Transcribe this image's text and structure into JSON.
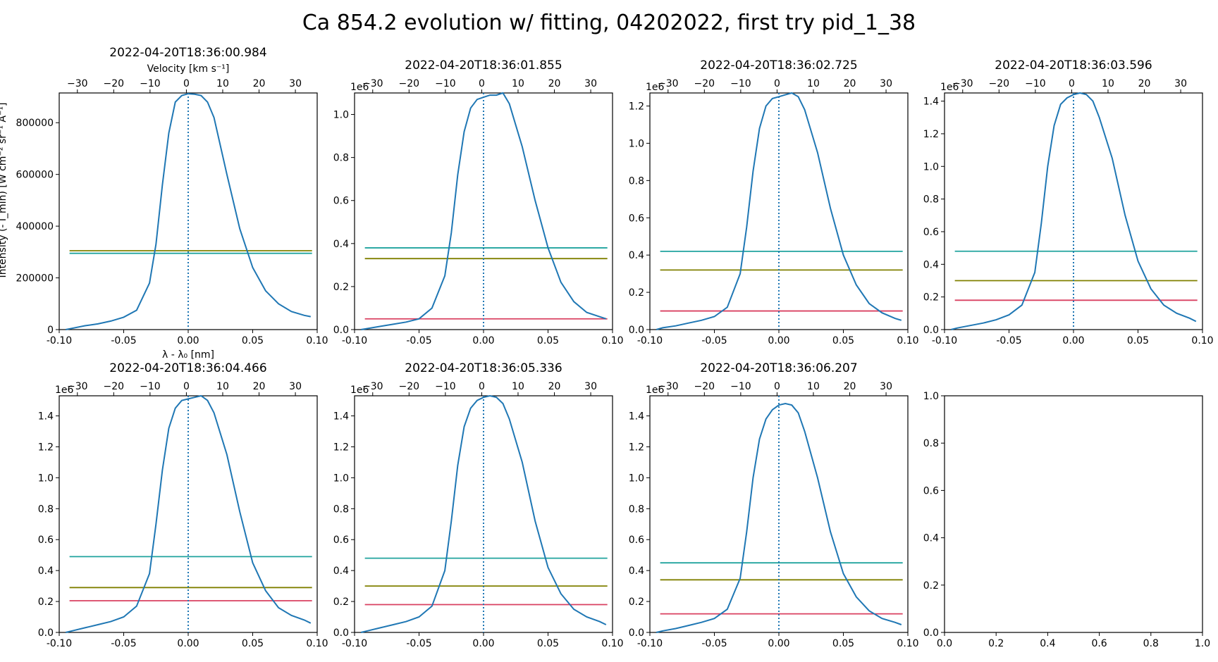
{
  "figure": {
    "title": "Ca 854.2 evolution w/ fitting, 04202022, first try pid_1_38"
  },
  "colors": {
    "profile": "#1f77b4",
    "center_line": "#1f77b4",
    "teal": "#20a39e",
    "olive": "#808000",
    "crimson": "#d94060",
    "axes": "#000000"
  },
  "chart_data": [
    {
      "type": "line",
      "title": "2022-04-20T18:36:00.984",
      "xlabel": "λ - λ₀ [nm]",
      "ylabel": "Intensity (- I_min) [W cm⁻² sr⁻¹ Å⁻¹]",
      "top_xlabel": "Velocity [km s⁻¹]",
      "xlim": [
        -0.1,
        0.1
      ],
      "ylim": [
        0,
        915000
      ],
      "xticks": [
        "-0.10",
        "-0.05",
        "0.00",
        "0.05",
        "0.10"
      ],
      "yticks": [
        {
          "v": 0,
          "label": "0"
        },
        {
          "v": 200000,
          "label": "200000"
        },
        {
          "v": 400000,
          "label": "400000"
        },
        {
          "v": 600000,
          "label": "600000"
        },
        {
          "v": 800000,
          "label": "800000"
        }
      ],
      "y_offset": "",
      "top_xlim": [
        -35,
        36
      ],
      "top_xticks": [
        "−30",
        "−20",
        "−10",
        "0",
        "10",
        "20",
        "30"
      ],
      "series": [
        {
          "x": [
            -0.095,
            -0.09,
            -0.08,
            -0.07,
            -0.06,
            -0.05,
            -0.04,
            -0.03,
            -0.025,
            -0.02,
            -0.015,
            -0.01,
            -0.005,
            0,
            0.005,
            0.01,
            0.015,
            0.02,
            0.03,
            0.04,
            0.05,
            0.06,
            0.07,
            0.08,
            0.09,
            0.095
          ],
          "y": [
            0,
            5000,
            15000,
            22000,
            33000,
            48000,
            75000,
            180000,
            330000,
            560000,
            760000,
            880000,
            905000,
            912000,
            910000,
            905000,
            880000,
            820000,
            600000,
            390000,
            240000,
            150000,
            100000,
            70000,
            55000,
            50000
          ]
        }
      ],
      "levels": [
        {
          "color": "olive",
          "y": 305000
        },
        {
          "color": "teal",
          "y": 295000
        }
      ]
    },
    {
      "type": "line",
      "title": "2022-04-20T18:36:01.855",
      "xlim": [
        -0.1,
        0.1
      ],
      "ylim": [
        0,
        1.1
      ],
      "xticks": [
        "-0.10",
        "-0.05",
        "0.00",
        "0.05",
        "0.10"
      ],
      "yticks": [
        {
          "v": 0,
          "label": "0.0"
        },
        {
          "v": 0.2,
          "label": "0.2"
        },
        {
          "v": 0.4,
          "label": "0.4"
        },
        {
          "v": 0.6,
          "label": "0.6"
        },
        {
          "v": 0.8,
          "label": "0.8"
        },
        {
          "v": 1.0,
          "label": "1.0"
        }
      ],
      "y_offset": "1e6",
      "top_xlim": [
        -35,
        36
      ],
      "top_xticks": [
        "−30",
        "−20",
        "−10",
        "0",
        "10",
        "20",
        "30"
      ],
      "series": [
        {
          "x": [
            -0.095,
            -0.09,
            -0.08,
            -0.07,
            -0.06,
            -0.05,
            -0.04,
            -0.03,
            -0.025,
            -0.02,
            -0.015,
            -0.01,
            -0.005,
            0,
            0.005,
            0.01,
            0.015,
            0.02,
            0.03,
            0.04,
            0.05,
            0.06,
            0.07,
            0.08,
            0.09,
            0.095
          ],
          "y": [
            0,
            0.005,
            0.015,
            0.025,
            0.035,
            0.05,
            0.1,
            0.25,
            0.45,
            0.72,
            0.92,
            1.03,
            1.07,
            1.08,
            1.09,
            1.09,
            1.1,
            1.05,
            0.85,
            0.6,
            0.38,
            0.22,
            0.13,
            0.08,
            0.06,
            0.05
          ]
        }
      ],
      "levels": [
        {
          "color": "teal",
          "y": 0.38
        },
        {
          "color": "olive",
          "y": 0.33
        },
        {
          "color": "crimson",
          "y": 0.05
        }
      ]
    },
    {
      "type": "line",
      "title": "2022-04-20T18:36:02.725",
      "xlim": [
        -0.1,
        0.1
      ],
      "ylim": [
        0,
        1.27
      ],
      "xticks": [
        "-0.10",
        "-0.05",
        "0.00",
        "0.05",
        "0.10"
      ],
      "yticks": [
        {
          "v": 0,
          "label": "0.0"
        },
        {
          "v": 0.2,
          "label": "0.2"
        },
        {
          "v": 0.4,
          "label": "0.4"
        },
        {
          "v": 0.6,
          "label": "0.6"
        },
        {
          "v": 0.8,
          "label": "0.8"
        },
        {
          "v": 1.0,
          "label": "1.0"
        },
        {
          "v": 1.2,
          "label": "1.2"
        }
      ],
      "y_offset": "1e6",
      "top_xlim": [
        -35,
        36
      ],
      "top_xticks": [
        "−30",
        "−20",
        "−10",
        "0",
        "10",
        "20",
        "30"
      ],
      "series": [
        {
          "x": [
            -0.095,
            -0.09,
            -0.08,
            -0.07,
            -0.06,
            -0.05,
            -0.04,
            -0.03,
            -0.025,
            -0.02,
            -0.015,
            -0.01,
            -0.005,
            0,
            0.005,
            0.01,
            0.015,
            0.02,
            0.03,
            0.04,
            0.05,
            0.06,
            0.07,
            0.08,
            0.09,
            0.095
          ],
          "y": [
            0,
            0.01,
            0.02,
            0.035,
            0.05,
            0.07,
            0.12,
            0.3,
            0.55,
            0.85,
            1.08,
            1.2,
            1.24,
            1.25,
            1.26,
            1.27,
            1.25,
            1.18,
            0.95,
            0.65,
            0.4,
            0.24,
            0.14,
            0.09,
            0.06,
            0.05
          ]
        }
      ],
      "levels": [
        {
          "color": "teal",
          "y": 0.42
        },
        {
          "color": "olive",
          "y": 0.32
        },
        {
          "color": "crimson",
          "y": 0.1
        }
      ]
    },
    {
      "type": "line",
      "title": "2022-04-20T18:36:03.596",
      "xlim": [
        -0.1,
        0.1
      ],
      "ylim": [
        0,
        1.45
      ],
      "xticks": [
        "-0.10",
        "-0.05",
        "0.00",
        "0.05",
        "0.10"
      ],
      "yticks": [
        {
          "v": 0,
          "label": "0.0"
        },
        {
          "v": 0.2,
          "label": "0.2"
        },
        {
          "v": 0.4,
          "label": "0.4"
        },
        {
          "v": 0.6,
          "label": "0.6"
        },
        {
          "v": 0.8,
          "label": "0.8"
        },
        {
          "v": 1.0,
          "label": "1.0"
        },
        {
          "v": 1.2,
          "label": "1.2"
        },
        {
          "v": 1.4,
          "label": "1.4"
        }
      ],
      "y_offset": "1e6",
      "top_xlim": [
        -35,
        36
      ],
      "top_xticks": [
        "−30",
        "−20",
        "−10",
        "0",
        "10",
        "20",
        "30"
      ],
      "series": [
        {
          "x": [
            -0.095,
            -0.09,
            -0.08,
            -0.07,
            -0.06,
            -0.05,
            -0.04,
            -0.03,
            -0.025,
            -0.02,
            -0.015,
            -0.01,
            -0.005,
            0,
            0.005,
            0.01,
            0.015,
            0.02,
            0.03,
            0.04,
            0.05,
            0.06,
            0.07,
            0.08,
            0.09,
            0.095
          ],
          "y": [
            0,
            0.01,
            0.025,
            0.04,
            0.06,
            0.09,
            0.15,
            0.35,
            0.65,
            1.0,
            1.25,
            1.38,
            1.42,
            1.44,
            1.45,
            1.44,
            1.4,
            1.3,
            1.05,
            0.7,
            0.42,
            0.25,
            0.15,
            0.1,
            0.07,
            0.05
          ]
        }
      ],
      "levels": [
        {
          "color": "teal",
          "y": 0.48
        },
        {
          "color": "olive",
          "y": 0.3
        },
        {
          "color": "crimson",
          "y": 0.18
        }
      ]
    },
    {
      "type": "line",
      "title": "2022-04-20T18:36:04.466",
      "xlim": [
        -0.1,
        0.1
      ],
      "ylim": [
        0,
        1.53
      ],
      "xticks": [
        "-0.10",
        "-0.05",
        "0.00",
        "0.05",
        "0.10"
      ],
      "yticks": [
        {
          "v": 0,
          "label": "0.0"
        },
        {
          "v": 0.2,
          "label": "0.2"
        },
        {
          "v": 0.4,
          "label": "0.4"
        },
        {
          "v": 0.6,
          "label": "0.6"
        },
        {
          "v": 0.8,
          "label": "0.8"
        },
        {
          "v": 1.0,
          "label": "1.0"
        },
        {
          "v": 1.2,
          "label": "1.2"
        },
        {
          "v": 1.4,
          "label": "1.4"
        }
      ],
      "y_offset": "1e6",
      "top_xlim": [
        -35,
        36
      ],
      "top_xticks": [
        "−30",
        "−20",
        "−10",
        "0",
        "10",
        "20",
        "30"
      ],
      "series": [
        {
          "x": [
            -0.095,
            -0.09,
            -0.08,
            -0.07,
            -0.06,
            -0.05,
            -0.04,
            -0.03,
            -0.025,
            -0.02,
            -0.015,
            -0.01,
            -0.005,
            0,
            0.005,
            0.01,
            0.015,
            0.02,
            0.03,
            0.04,
            0.05,
            0.06,
            0.07,
            0.08,
            0.09,
            0.095
          ],
          "y": [
            0,
            0.01,
            0.03,
            0.05,
            0.07,
            0.1,
            0.17,
            0.38,
            0.7,
            1.05,
            1.32,
            1.45,
            1.5,
            1.51,
            1.52,
            1.53,
            1.5,
            1.42,
            1.15,
            0.78,
            0.45,
            0.27,
            0.16,
            0.11,
            0.08,
            0.06
          ]
        }
      ],
      "levels": [
        {
          "color": "teal",
          "y": 0.49
        },
        {
          "color": "olive",
          "y": 0.29
        },
        {
          "color": "crimson",
          "y": 0.205
        }
      ]
    },
    {
      "type": "line",
      "title": "2022-04-20T18:36:05.336",
      "xlim": [
        -0.1,
        0.1
      ],
      "ylim": [
        0,
        1.53
      ],
      "xticks": [
        "-0.10",
        "-0.05",
        "0.00",
        "0.05",
        "0.10"
      ],
      "yticks": [
        {
          "v": 0,
          "label": "0.0"
        },
        {
          "v": 0.2,
          "label": "0.2"
        },
        {
          "v": 0.4,
          "label": "0.4"
        },
        {
          "v": 0.6,
          "label": "0.6"
        },
        {
          "v": 0.8,
          "label": "0.8"
        },
        {
          "v": 1.0,
          "label": "1.0"
        },
        {
          "v": 1.2,
          "label": "1.2"
        },
        {
          "v": 1.4,
          "label": "1.4"
        }
      ],
      "y_offset": "1e6",
      "top_xlim": [
        -35,
        36
      ],
      "top_xticks": [
        "−30",
        "−20",
        "−10",
        "0",
        "10",
        "20",
        "30"
      ],
      "series": [
        {
          "x": [
            -0.095,
            -0.09,
            -0.08,
            -0.07,
            -0.06,
            -0.05,
            -0.04,
            -0.03,
            -0.025,
            -0.02,
            -0.015,
            -0.01,
            -0.005,
            0,
            0.005,
            0.01,
            0.015,
            0.02,
            0.03,
            0.04,
            0.05,
            0.06,
            0.07,
            0.08,
            0.09,
            0.095
          ],
          "y": [
            0,
            0.01,
            0.03,
            0.05,
            0.07,
            0.1,
            0.17,
            0.4,
            0.72,
            1.08,
            1.33,
            1.45,
            1.5,
            1.52,
            1.53,
            1.52,
            1.48,
            1.38,
            1.1,
            0.72,
            0.42,
            0.25,
            0.15,
            0.1,
            0.07,
            0.05
          ]
        }
      ],
      "levels": [
        {
          "color": "teal",
          "y": 0.48
        },
        {
          "color": "olive",
          "y": 0.3
        },
        {
          "color": "crimson",
          "y": 0.18
        }
      ]
    },
    {
      "type": "line",
      "title": "2022-04-20T18:36:06.207",
      "xlim": [
        -0.1,
        0.1
      ],
      "ylim": [
        0,
        1.53
      ],
      "xticks": [
        "-0.10",
        "-0.05",
        "0.00",
        "0.05",
        "0.10"
      ],
      "yticks": [
        {
          "v": 0,
          "label": "0.0"
        },
        {
          "v": 0.2,
          "label": "0.2"
        },
        {
          "v": 0.4,
          "label": "0.4"
        },
        {
          "v": 0.6,
          "label": "0.6"
        },
        {
          "v": 0.8,
          "label": "0.8"
        },
        {
          "v": 1.0,
          "label": "1.0"
        },
        {
          "v": 1.2,
          "label": "1.2"
        },
        {
          "v": 1.4,
          "label": "1.4"
        }
      ],
      "y_offset": "1e6",
      "top_xlim": [
        -35,
        36
      ],
      "top_xticks": [
        "−30",
        "−20",
        "−10",
        "0",
        "10",
        "20",
        "30"
      ],
      "series": [
        {
          "x": [
            -0.095,
            -0.09,
            -0.08,
            -0.07,
            -0.06,
            -0.05,
            -0.04,
            -0.03,
            -0.025,
            -0.02,
            -0.015,
            -0.01,
            -0.005,
            0,
            0.005,
            0.01,
            0.015,
            0.02,
            0.03,
            0.04,
            0.05,
            0.06,
            0.07,
            0.08,
            0.09,
            0.095
          ],
          "y": [
            0,
            0.01,
            0.025,
            0.045,
            0.065,
            0.09,
            0.15,
            0.35,
            0.65,
            1.0,
            1.25,
            1.38,
            1.44,
            1.47,
            1.48,
            1.47,
            1.42,
            1.3,
            1.0,
            0.65,
            0.38,
            0.23,
            0.14,
            0.09,
            0.065,
            0.05
          ]
        }
      ],
      "levels": [
        {
          "color": "teal",
          "y": 0.45
        },
        {
          "color": "olive",
          "y": 0.34
        },
        {
          "color": "crimson",
          "y": 0.12
        }
      ]
    },
    {
      "type": "line",
      "title": "",
      "xlim": [
        0,
        1
      ],
      "ylim": [
        0,
        1
      ],
      "xticks": [
        "0.0",
        "0.2",
        "0.4",
        "0.6",
        "0.8",
        "1.0"
      ],
      "yticks": [
        {
          "v": 0,
          "label": "0.0"
        },
        {
          "v": 0.2,
          "label": "0.2"
        },
        {
          "v": 0.4,
          "label": "0.4"
        },
        {
          "v": 0.6,
          "label": "0.6"
        },
        {
          "v": 0.8,
          "label": "0.8"
        },
        {
          "v": 1.0,
          "label": "1.0"
        }
      ],
      "y_offset": "",
      "top_xticks": [],
      "series": [],
      "levels": []
    }
  ]
}
